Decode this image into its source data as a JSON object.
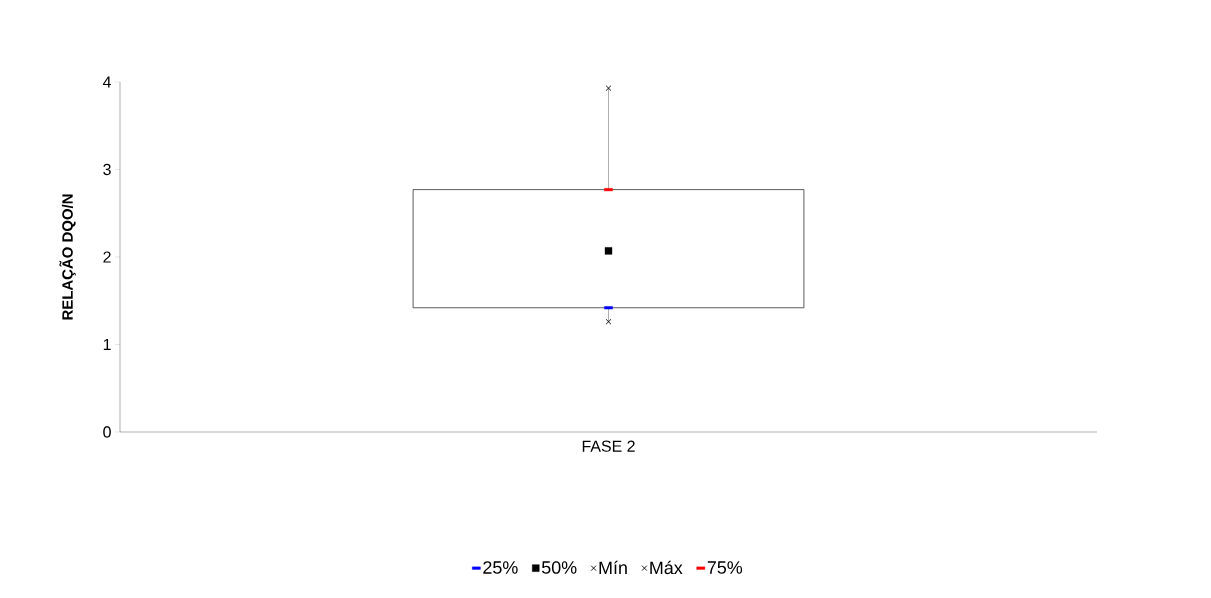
{
  "chart_data": {
    "type": "box",
    "ylabel": "RELAÇÃO DQO/N",
    "categories": [
      "FASE 2"
    ],
    "boxes": [
      {
        "low": 1.26,
        "q1": 1.42,
        "q3": 2.77,
        "high": 3.93
      }
    ],
    "series": [
      {
        "name": "25%",
        "type": "scatter",
        "color": "#0000ff",
        "values": [
          1.42
        ]
      },
      {
        "name": "50%",
        "type": "scatter",
        "color": "#000000",
        "marker": "square",
        "values": [
          2.07
        ]
      },
      {
        "name": "Mín",
        "type": "scatter",
        "color": "#000000",
        "marker": "cross",
        "values": [
          1.26
        ]
      },
      {
        "name": "Máx",
        "type": "scatter",
        "color": "#000000",
        "marker": "cross",
        "values": [
          3.93
        ]
      },
      {
        "name": "75%",
        "type": "scatter",
        "color": "#ff0000",
        "values": [
          2.77
        ]
      }
    ],
    "ylim": [
      0,
      4
    ],
    "yticks": [
      0,
      1,
      2,
      3,
      4
    ],
    "grid": false,
    "legend": "bottom"
  }
}
